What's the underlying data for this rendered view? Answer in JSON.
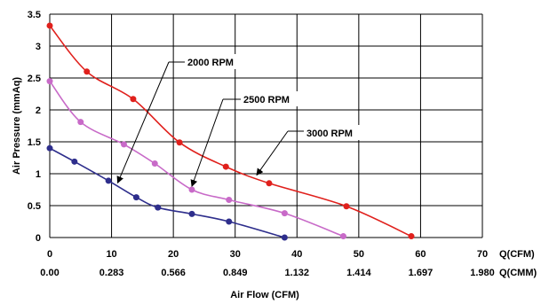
{
  "chart_data": {
    "type": "line",
    "xlabel": "Air Flow (CFM)",
    "ylabel": "Air Pressure (mmAq)",
    "xlim": [
      0,
      70
    ],
    "ylim": [
      0,
      3.5
    ],
    "grid": true,
    "x_ticks": [
      "0",
      "10",
      "20",
      "30",
      "40",
      "50",
      "60",
      "70"
    ],
    "x_unit_label": "Q(CFM)",
    "x2_ticks": [
      "0.00",
      "0.283",
      "0.566",
      "0.849",
      "1.132",
      "1.414",
      "1.697",
      "1.980"
    ],
    "x2_unit_label": "Q(CMM)",
    "y_ticks": [
      "0",
      "0.5",
      "1",
      "1.5",
      "2",
      "2.5",
      "3",
      "3.5"
    ],
    "series": [
      {
        "name": "2000 RPM",
        "color": "#2e2e8c",
        "points": [
          [
            0,
            1.4
          ],
          [
            4,
            1.19
          ],
          [
            9.5,
            0.89
          ],
          [
            14,
            0.63
          ],
          [
            17.5,
            0.47
          ],
          [
            23,
            0.37
          ],
          [
            29,
            0.25
          ],
          [
            38,
            0.0
          ]
        ]
      },
      {
        "name": "2500 RPM",
        "color": "#c86ac8",
        "points": [
          [
            0,
            2.45
          ],
          [
            5,
            1.81
          ],
          [
            12,
            1.46
          ],
          [
            17,
            1.16
          ],
          [
            23,
            0.75
          ],
          [
            29,
            0.59
          ],
          [
            38,
            0.38
          ],
          [
            47.5,
            0.02
          ]
        ]
      },
      {
        "name": "3000 RPM",
        "color": "#e0201c",
        "points": [
          [
            0,
            3.32
          ],
          [
            6,
            2.6
          ],
          [
            13.5,
            2.17
          ],
          [
            21,
            1.49
          ],
          [
            28.5,
            1.11
          ],
          [
            35.5,
            0.85
          ],
          [
            48,
            0.49
          ],
          [
            58.5,
            0.02
          ]
        ]
      }
    ],
    "annotations": [
      {
        "text": "2000 RPM",
        "target_series": 0,
        "target_x": 11
      },
      {
        "text": "2500 RPM",
        "target_series": 1,
        "target_x": 23
      },
      {
        "text": "3000 RPM",
        "target_series": 2,
        "target_x": 33.5
      }
    ]
  }
}
